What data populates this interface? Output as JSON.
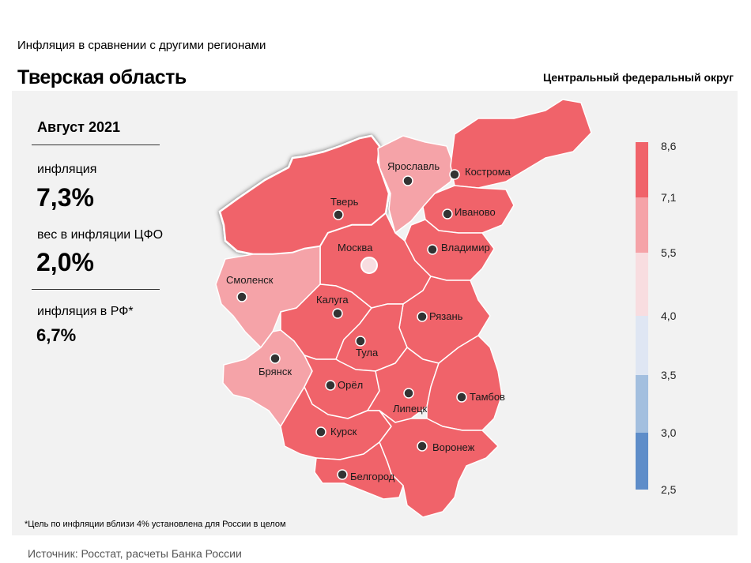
{
  "header": {
    "subtitle": "Инфляция  в сравнении  с другими регионами",
    "title": "Тверская область",
    "district": "Центральный федеральный округ"
  },
  "stats": {
    "period": "Август 2021",
    "inflation_label": "инфляция",
    "inflation_value": "7,3%",
    "weight_label": "вес в инфляции  ЦФО",
    "weight_value": "2,0%",
    "rf_label": "инфляция  в РФ*",
    "rf_value": "6,7%"
  },
  "legend": {
    "ticks": [
      "8,6",
      "7,1",
      "5,5",
      "4,0",
      "3,5",
      "3,0",
      "2,5"
    ],
    "colors": [
      "#f0636a",
      "#f5a3a8",
      "#f8dde0",
      "#dfe6f3",
      "#a3bfdf",
      "#5e8dc9"
    ]
  },
  "map": {
    "selected_region": "Тверь",
    "regions": [
      {
        "name": "Тверь",
        "color": "#f0636a"
      },
      {
        "name": "Ярославль",
        "color": "#f5a3a8"
      },
      {
        "name": "Кострома",
        "color": "#f0636a"
      },
      {
        "name": "Иваново",
        "color": "#f0636a"
      },
      {
        "name": "Москва",
        "color": "#f0636a"
      },
      {
        "name": "Владимир",
        "color": "#f0636a"
      },
      {
        "name": "Смоленск",
        "color": "#f5a3a8"
      },
      {
        "name": "Калуга",
        "color": "#f0636a"
      },
      {
        "name": "Рязань",
        "color": "#f0636a"
      },
      {
        "name": "Тула",
        "color": "#f0636a"
      },
      {
        "name": "Брянск",
        "color": "#f5a3a8"
      },
      {
        "name": "Орёл",
        "color": "#f0636a"
      },
      {
        "name": "Липецк",
        "color": "#f0636a"
      },
      {
        "name": "Тамбов",
        "color": "#f0636a"
      },
      {
        "name": "Курск",
        "color": "#f0636a"
      },
      {
        "name": "Воронеж",
        "color": "#f0636a"
      },
      {
        "name": "Белгород",
        "color": "#f0636a"
      }
    ]
  },
  "footnote": "*Цель по инфляции вблизи 4% установлена для России в целом",
  "source": "Источник: Росстат, расчеты Банка России"
}
